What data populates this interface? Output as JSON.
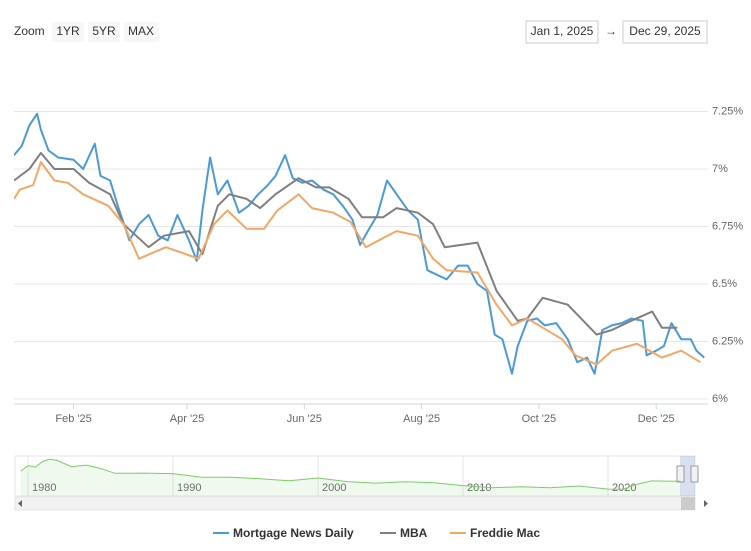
{
  "range_selector": {
    "label": "Zoom",
    "buttons": [
      "1YR",
      "5YR",
      "MAX"
    ],
    "from": "Jan 1, 2025",
    "arrow": "→",
    "to": "Dec 29, 2025"
  },
  "chart_data": {
    "type": "line",
    "xlim": [
      "2025-01-01",
      "2025-12-29"
    ],
    "xticks": [
      {
        "value": "2025-02-01",
        "label": "Feb '25"
      },
      {
        "value": "2025-04-01",
        "label": "Apr '25"
      },
      {
        "value": "2025-06-01",
        "label": "Jun '25"
      },
      {
        "value": "2025-08-01",
        "label": "Aug '25"
      },
      {
        "value": "2025-10-01",
        "label": "Oct '25"
      },
      {
        "value": "2025-12-01",
        "label": "Dec '25"
      }
    ],
    "ylim": [
      6,
      7.5
    ],
    "yticks": [
      {
        "value": 6,
        "label": "6%"
      },
      {
        "value": 6.25,
        "label": "6.25%"
      },
      {
        "value": 6.5,
        "label": "6.5%"
      },
      {
        "value": 6.75,
        "label": "6.75%"
      },
      {
        "value": 7,
        "label": "7%"
      },
      {
        "value": 7.25,
        "label": "7.25%"
      }
    ],
    "grid": true,
    "series": [
      {
        "name": "Mortgage News Daily",
        "color": "#4a9ad8",
        "x": [
          "2025-01-01",
          "2025-01-05",
          "2025-01-09",
          "2025-01-13",
          "2025-01-15",
          "2025-01-19",
          "2025-01-24",
          "2025-02-01",
          "2025-02-06",
          "2025-02-12",
          "2025-02-15",
          "2025-02-20",
          "2025-02-24",
          "2025-03-02",
          "2025-03-07",
          "2025-03-12",
          "2025-03-17",
          "2025-03-22",
          "2025-03-27",
          "2025-04-02",
          "2025-04-06",
          "2025-04-09",
          "2025-04-13",
          "2025-04-17",
          "2025-04-22",
          "2025-04-28",
          "2025-05-03",
          "2025-05-08",
          "2025-05-13",
          "2025-05-17",
          "2025-05-22",
          "2025-05-26",
          "2025-05-31",
          "2025-06-05",
          "2025-06-11",
          "2025-06-16",
          "2025-06-21",
          "2025-06-26",
          "2025-06-30",
          "2025-07-04",
          "2025-07-09",
          "2025-07-14",
          "2025-07-19",
          "2025-07-25",
          "2025-07-30",
          "2025-08-04",
          "2025-08-09",
          "2025-08-14",
          "2025-08-20",
          "2025-08-25",
          "2025-08-30",
          "2025-09-04",
          "2025-09-08",
          "2025-09-12",
          "2025-09-17",
          "2025-09-20",
          "2025-09-25",
          "2025-09-30",
          "2025-10-04",
          "2025-10-10",
          "2025-10-16",
          "2025-10-21",
          "2025-10-26",
          "2025-10-30",
          "2025-11-03",
          "2025-11-08",
          "2025-11-13",
          "2025-11-18",
          "2025-11-24",
          "2025-11-26",
          "2025-12-01",
          "2025-12-05",
          "2025-12-09",
          "2025-12-14",
          "2025-12-19",
          "2025-12-22",
          "2025-12-26"
        ],
        "values": [
          7.06,
          7.1,
          7.19,
          7.24,
          7.17,
          7.08,
          7.05,
          7.04,
          7.0,
          7.11,
          6.97,
          6.95,
          6.84,
          6.69,
          6.76,
          6.8,
          6.71,
          6.69,
          6.8,
          6.69,
          6.6,
          6.82,
          7.05,
          6.89,
          6.95,
          6.81,
          6.84,
          6.89,
          6.93,
          6.97,
          7.06,
          6.96,
          6.94,
          6.95,
          6.91,
          6.89,
          6.84,
          6.78,
          6.67,
          6.73,
          6.8,
          6.95,
          6.89,
          6.82,
          6.78,
          6.56,
          6.54,
          6.52,
          6.58,
          6.58,
          6.5,
          6.47,
          6.28,
          6.26,
          6.11,
          6.23,
          6.34,
          6.35,
          6.32,
          6.33,
          6.26,
          6.16,
          6.18,
          6.11,
          6.3,
          6.32,
          6.33,
          6.35,
          6.34,
          6.19,
          6.21,
          6.23,
          6.33,
          6.26,
          6.26,
          6.21,
          6.18
        ]
      },
      {
        "name": "MBA",
        "color": "#7f7f7f",
        "x": [
          "2025-01-01",
          "2025-01-09",
          "2025-01-15",
          "2025-01-22",
          "2025-02-01",
          "2025-02-09",
          "2025-02-20",
          "2025-02-27",
          "2025-03-12",
          "2025-03-20",
          "2025-04-02",
          "2025-04-09",
          "2025-04-17",
          "2025-04-23",
          "2025-05-02",
          "2025-05-09",
          "2025-05-17",
          "2025-05-29",
          "2025-06-07",
          "2025-06-14",
          "2025-06-24",
          "2025-07-01",
          "2025-07-12",
          "2025-07-19",
          "2025-07-30",
          "2025-08-07",
          "2025-08-13",
          "2025-08-30",
          "2025-09-09",
          "2025-09-20",
          "2025-09-25",
          "2025-10-03",
          "2025-10-16",
          "2025-10-31",
          "2025-11-08",
          "2025-11-18",
          "2025-11-29",
          "2025-12-04",
          "2025-12-12"
        ],
        "values": [
          6.95,
          7.0,
          7.07,
          7.0,
          7.0,
          6.94,
          6.89,
          6.76,
          6.66,
          6.71,
          6.73,
          6.63,
          6.84,
          6.89,
          6.87,
          6.83,
          6.89,
          6.96,
          6.92,
          6.92,
          6.87,
          6.79,
          6.79,
          6.83,
          6.81,
          6.76,
          6.66,
          6.68,
          6.47,
          6.34,
          6.35,
          6.44,
          6.41,
          6.28,
          6.3,
          6.34,
          6.38,
          6.31,
          6.31
        ]
      },
      {
        "name": "Freddie Mac",
        "color": "#f2a766",
        "x": [
          "2025-01-01",
          "2025-01-04",
          "2025-01-11",
          "2025-01-15",
          "2025-01-22",
          "2025-01-29",
          "2025-02-06",
          "2025-02-19",
          "2025-02-27",
          "2025-03-07",
          "2025-03-21",
          "2025-04-07",
          "2025-04-15",
          "2025-04-22",
          "2025-05-02",
          "2025-05-11",
          "2025-05-18",
          "2025-05-29",
          "2025-06-05",
          "2025-06-16",
          "2025-06-25",
          "2025-07-03",
          "2025-07-12",
          "2025-07-19",
          "2025-07-30",
          "2025-08-07",
          "2025-08-14",
          "2025-08-30",
          "2025-09-09",
          "2025-09-17",
          "2025-09-25",
          "2025-10-03",
          "2025-10-13",
          "2025-10-20",
          "2025-10-31",
          "2025-11-08",
          "2025-11-21",
          "2025-12-04",
          "2025-12-14",
          "2025-12-24"
        ],
        "values": [
          6.87,
          6.91,
          6.93,
          7.03,
          6.95,
          6.94,
          6.89,
          6.84,
          6.76,
          6.61,
          6.66,
          6.61,
          6.76,
          6.82,
          6.74,
          6.74,
          6.82,
          6.89,
          6.83,
          6.81,
          6.77,
          6.66,
          6.7,
          6.73,
          6.71,
          6.61,
          6.56,
          6.55,
          6.41,
          6.32,
          6.35,
          6.31,
          6.26,
          6.19,
          6.15,
          6.21,
          6.24,
          6.18,
          6.21,
          6.16
        ]
      }
    ],
    "navigator": {
      "color": "#7ccd68",
      "xlim": [
        1979.1,
        2026
      ],
      "ylim": [
        0,
        18
      ],
      "xticks": [
        1980,
        1990,
        2000,
        2010,
        2020
      ],
      "x": [
        1979.5,
        1980,
        1980.5,
        1981,
        1981.5,
        1982,
        1983,
        1984,
        1985,
        1986,
        1987,
        1988,
        1990,
        1992,
        1994,
        1996,
        1998,
        2000,
        2002,
        2004,
        2006,
        2008,
        2010,
        2012,
        2014,
        2016,
        2018,
        2020,
        2021,
        2022,
        2023,
        2024,
        2025
      ],
      "values": [
        11.2,
        13.7,
        13.0,
        15.5,
        16.6,
        16.0,
        13.2,
        13.9,
        12.4,
        10.2,
        10.2,
        10.3,
        10.1,
        8.4,
        8.4,
        7.8,
        6.9,
        8.1,
        6.5,
        5.8,
        6.4,
        6.0,
        4.7,
        3.7,
        4.2,
        3.7,
        4.5,
        3.1,
        3.0,
        5.3,
        6.8,
        6.7,
        6.6
      ]
    }
  }
}
